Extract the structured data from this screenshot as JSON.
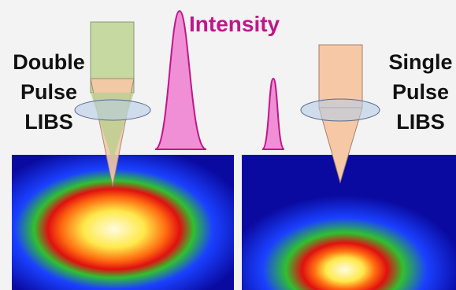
{
  "title": "Intensity",
  "left_label": [
    "Double",
    "Pulse",
    "LIBS"
  ],
  "right_label": [
    "Single",
    "Pulse",
    "LIBS"
  ]
}
